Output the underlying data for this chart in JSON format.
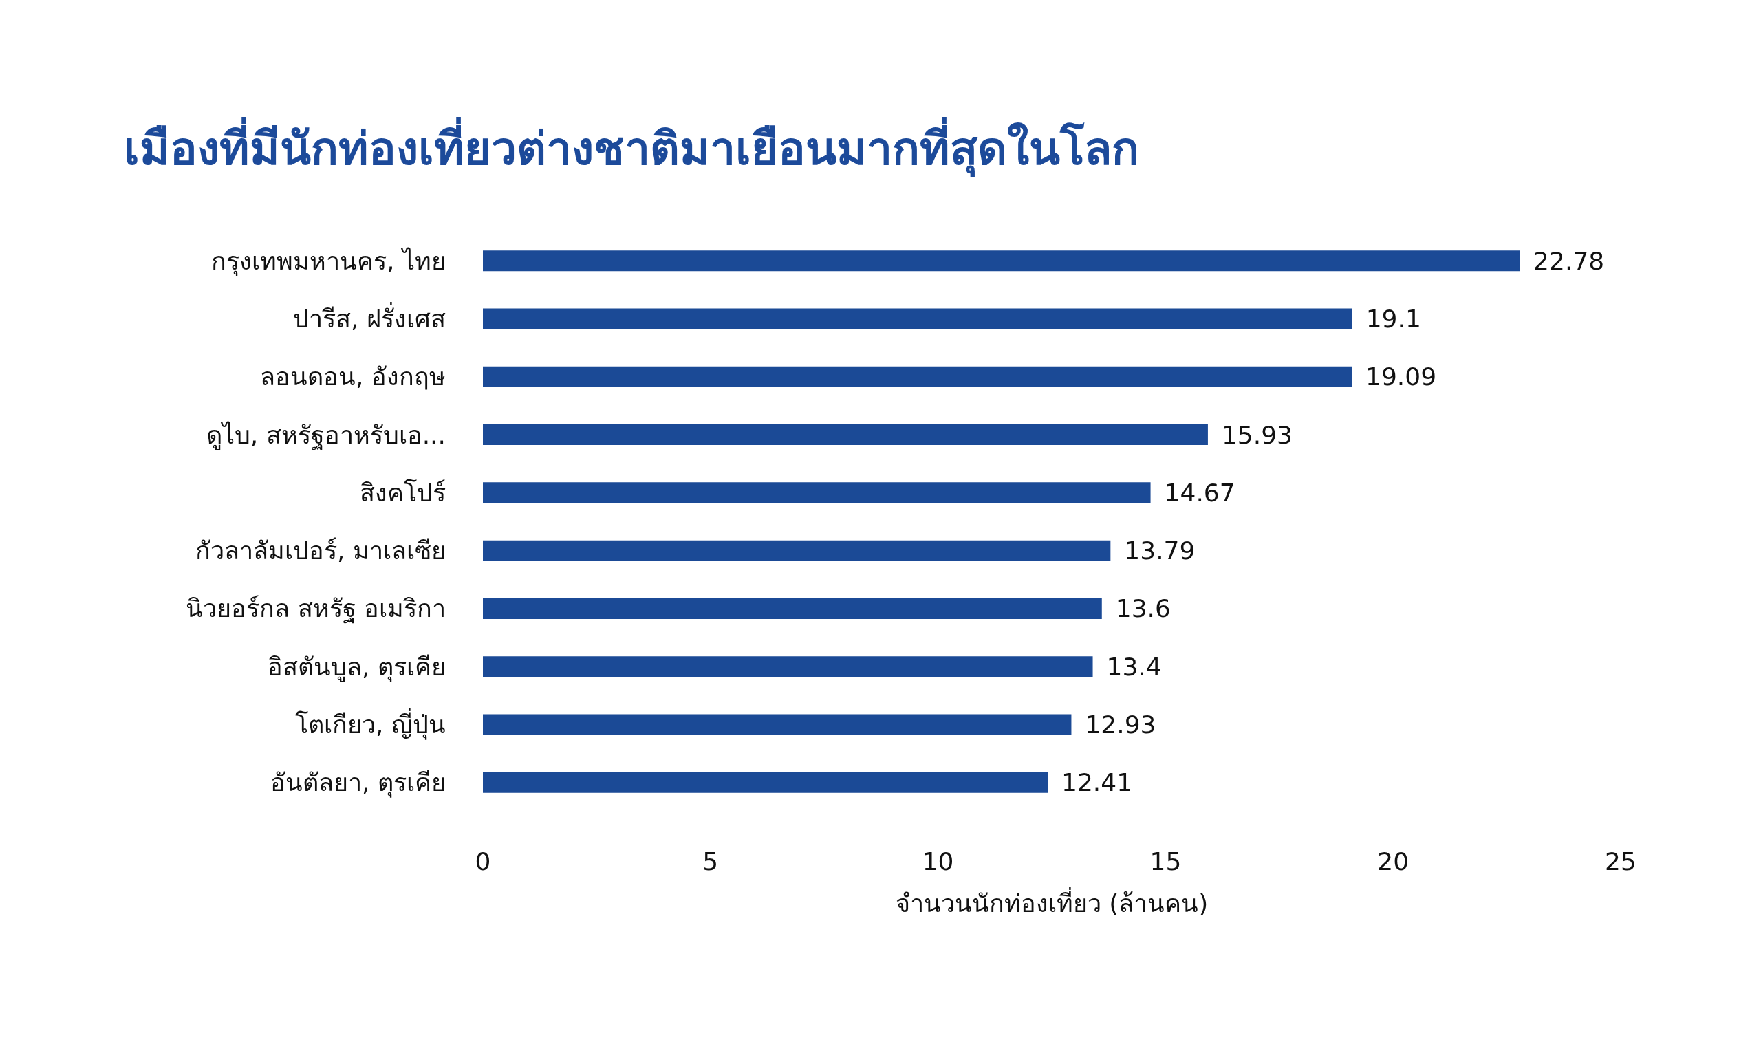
{
  "chart_data": {
    "type": "bar",
    "orientation": "horizontal",
    "title": "เมืองที่มีนักท่องเที่ยวต่างชาติมาเยือนมากที่สุดในโลก",
    "xlabel": "จำนวนนักท่องเที่ยว (ล้านคน)",
    "categories": [
      "กรุงเทพมหานคร, ไทย",
      "ปารีส, ฝรั่งเศส",
      "ลอนดอน, อังกฤษ",
      "ดูไบ, สหรัฐอาหรับเอ...",
      "สิงคโปร์",
      "กัวลาลัมเปอร์, มาเลเซีย",
      "นิวยอร์กล สหรัฐ อเมริกา",
      "อิสตันบูล, ตุรเคีย",
      "โตเกียว, ญี่ปุ่น",
      "อันตัลยา, ตุรเคีย"
    ],
    "values": [
      22.78,
      19.1,
      19.09,
      15.93,
      14.67,
      13.79,
      13.6,
      13.4,
      12.93,
      12.41
    ],
    "color": "#1b4a96",
    "xlim": [
      0,
      25
    ],
    "xticks": [
      0,
      5,
      10,
      15,
      20,
      25
    ],
    "data_labels": true
  }
}
